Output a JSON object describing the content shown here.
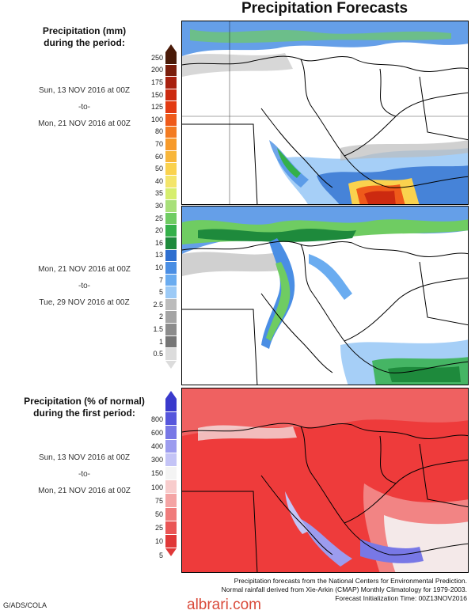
{
  "title": "Precipitation Forecasts",
  "section1": {
    "heading_line1": "Precipitation (mm)",
    "heading_line2": "during the period:",
    "periods": [
      {
        "start": "Sun, 13 NOV 2016 at 00Z",
        "sep": "-to-",
        "end": "Mon, 21 NOV 2016 at 00Z"
      },
      {
        "start": "Mon, 21 NOV 2016 at 00Z",
        "sep": "-to-",
        "end": "Tue, 29 NOV 2016 at 00Z"
      }
    ],
    "colorbar": {
      "labels": [
        "250",
        "200",
        "175",
        "150",
        "125",
        "100",
        "80",
        "70",
        "60",
        "50",
        "40",
        "35",
        "30",
        "25",
        "20",
        "16",
        "13",
        "10",
        "7",
        "5",
        "2.5",
        "2",
        "1.5",
        "1",
        "0.5"
      ],
      "colors": [
        "#4a1a08",
        "#7a1e0c",
        "#a8200e",
        "#cc2a10",
        "#e33a12",
        "#ef5a1a",
        "#f37b22",
        "#f79a2a",
        "#f8b63a",
        "#fad24e",
        "#f4e56a",
        "#d6ee6e",
        "#a8e07a",
        "#6fcc62",
        "#34b04a",
        "#1e8a3c",
        "#2e6fd0",
        "#4a8ee4",
        "#6aacf0",
        "#9ccaf6",
        "#bcbcbc",
        "#a4a4a4",
        "#8c8c8c",
        "#767676",
        "#dcdcdc"
      ]
    }
  },
  "section2": {
    "heading_line1": "Precipitation (% of normal)",
    "heading_line2": "during the first period:",
    "period": {
      "start": "Sun, 13 NOV 2016 at 00Z",
      "sep": "-to-",
      "end": "Mon, 21 NOV 2016 at 00Z"
    },
    "colorbar": {
      "labels": [
        "800",
        "600",
        "400",
        "300",
        "150",
        "100",
        "75",
        "50",
        "25",
        "10",
        "5"
      ],
      "colors": [
        "#3a3acc",
        "#5656dc",
        "#7878e6",
        "#9c9cef",
        "#c4c4f6",
        "#f4f4f4",
        "#f8cccc",
        "#f4a4a4",
        "#f07c7c",
        "#ea5656",
        "#e03838"
      ]
    }
  },
  "footer": {
    "line1": "Precipitation forecasts from the National Centers for Environmental Prediction.",
    "line2": "Normal rainfall derived from Xie-Arkin (CMAP) Monthly Climatology for 1979-2003.",
    "line3": "Forecast Initialization Time: 00Z13NOV2016"
  },
  "credit": "G/ADS/COLA",
  "watermark": "albrari.com",
  "colors": {
    "map_bg_red": "#ee3b3b",
    "ocean_line": "#000000",
    "land_white": "#ffffff"
  }
}
